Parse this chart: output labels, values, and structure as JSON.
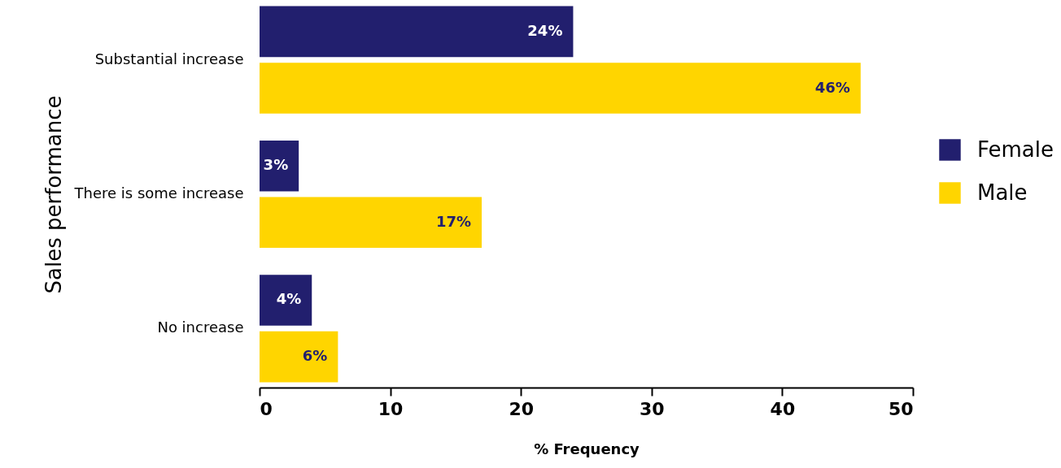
{
  "chart_data": {
    "type": "bar",
    "orientation": "horizontal",
    "xlabel": "% Frequency",
    "ylabel": "Sales performance",
    "categories": [
      "Substantial increase",
      "There is some increase",
      "No increase"
    ],
    "series": [
      {
        "name": "Female",
        "color": "#221f6e",
        "values": [
          24,
          3,
          4
        ],
        "value_labels": [
          "24%",
          "3%",
          "4%"
        ]
      },
      {
        "name": "Male",
        "color": "#ffd500",
        "values": [
          46,
          17,
          6
        ],
        "value_labels": [
          "46%",
          "17%",
          "6%"
        ]
      }
    ],
    "xlim": [
      0,
      50
    ],
    "xticks": [
      0,
      10,
      20,
      30,
      40,
      50
    ],
    "grid": false,
    "legend": "right"
  }
}
